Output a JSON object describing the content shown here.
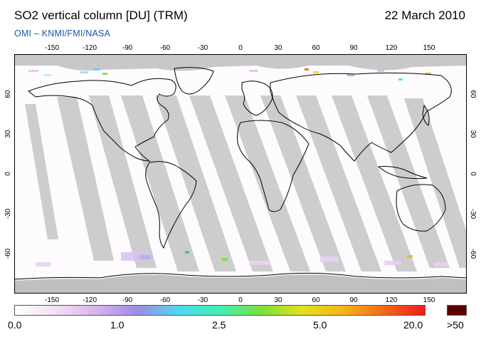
{
  "header": {
    "title": "SO2 vertical column [DU] (TRM)",
    "date": "22 March 2010",
    "credit": "OMI  –  KNMI/FMI/NASA"
  },
  "map": {
    "projection": "equirectangular",
    "longitude_ticks": [
      "-150",
      "-120",
      "-90",
      "-60",
      "-30",
      "0",
      "30",
      "60",
      "90",
      "120",
      "150"
    ],
    "latitude_ticks": [
      "60",
      "30",
      "0",
      "-30",
      "-60"
    ],
    "colors": {
      "no_data": "#c8c8c8",
      "orbit_gap": "#cfcfcf",
      "coastline": "#000000",
      "background_low": "#fdfafd"
    }
  },
  "colorbar": {
    "labels": [
      "0.0",
      "1.0",
      "2.5",
      "5.0",
      "20.0"
    ],
    "overflow_label": ">50",
    "overflow_color": "#5a0000",
    "gradient": [
      "#ffffff",
      "#f2e0f4",
      "#d9b2ec",
      "#9c8ce6",
      "#4fd8f0",
      "#42f0b4",
      "#79e03c",
      "#e2e01e",
      "#f7b419",
      "#f26a16",
      "#ee1c1c"
    ]
  }
}
